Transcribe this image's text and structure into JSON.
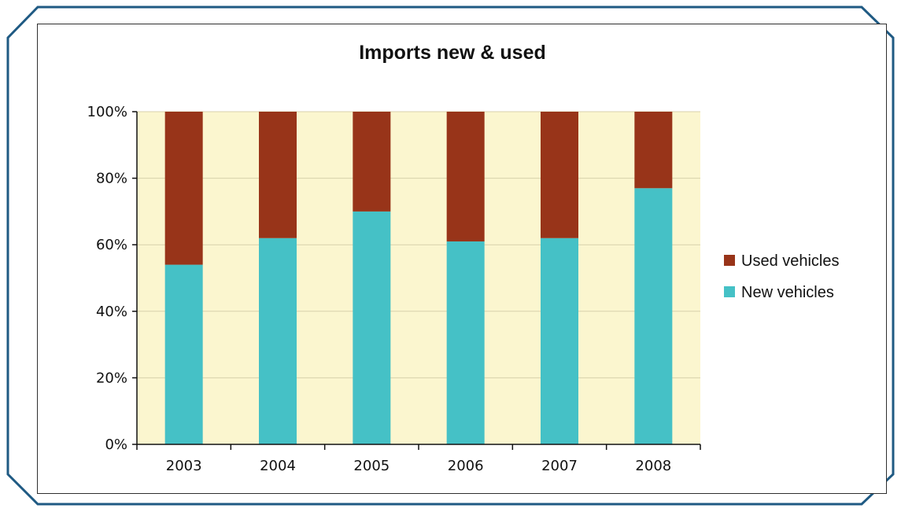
{
  "colors": {
    "plot_background": "#fbf6cf",
    "used": "#983419",
    "new": "#45c1c6",
    "frame": "#1f5a83",
    "gridline": "#d8d1ab",
    "axis": "#111111"
  },
  "chart_data": {
    "type": "bar",
    "stacked": true,
    "title": "Imports new & used",
    "xlabel": "",
    "ylabel": "",
    "categories": [
      "2003",
      "2004",
      "2005",
      "2006",
      "2007",
      "2008"
    ],
    "series": [
      {
        "name": "New vehicles",
        "color": "#45c1c6",
        "values": [
          54,
          62,
          70,
          61,
          62,
          77
        ]
      },
      {
        "name": "Used vehicles",
        "color": "#983419",
        "values": [
          46,
          38,
          30,
          39,
          38,
          23
        ]
      }
    ],
    "ylim": [
      0,
      100
    ],
    "yticks": [
      "0%",
      "20%",
      "40%",
      "60%",
      "80%",
      "100%"
    ],
    "legend": {
      "position": "right",
      "entries": [
        "Used vehicles",
        "New vehicles"
      ]
    },
    "grid": true
  }
}
